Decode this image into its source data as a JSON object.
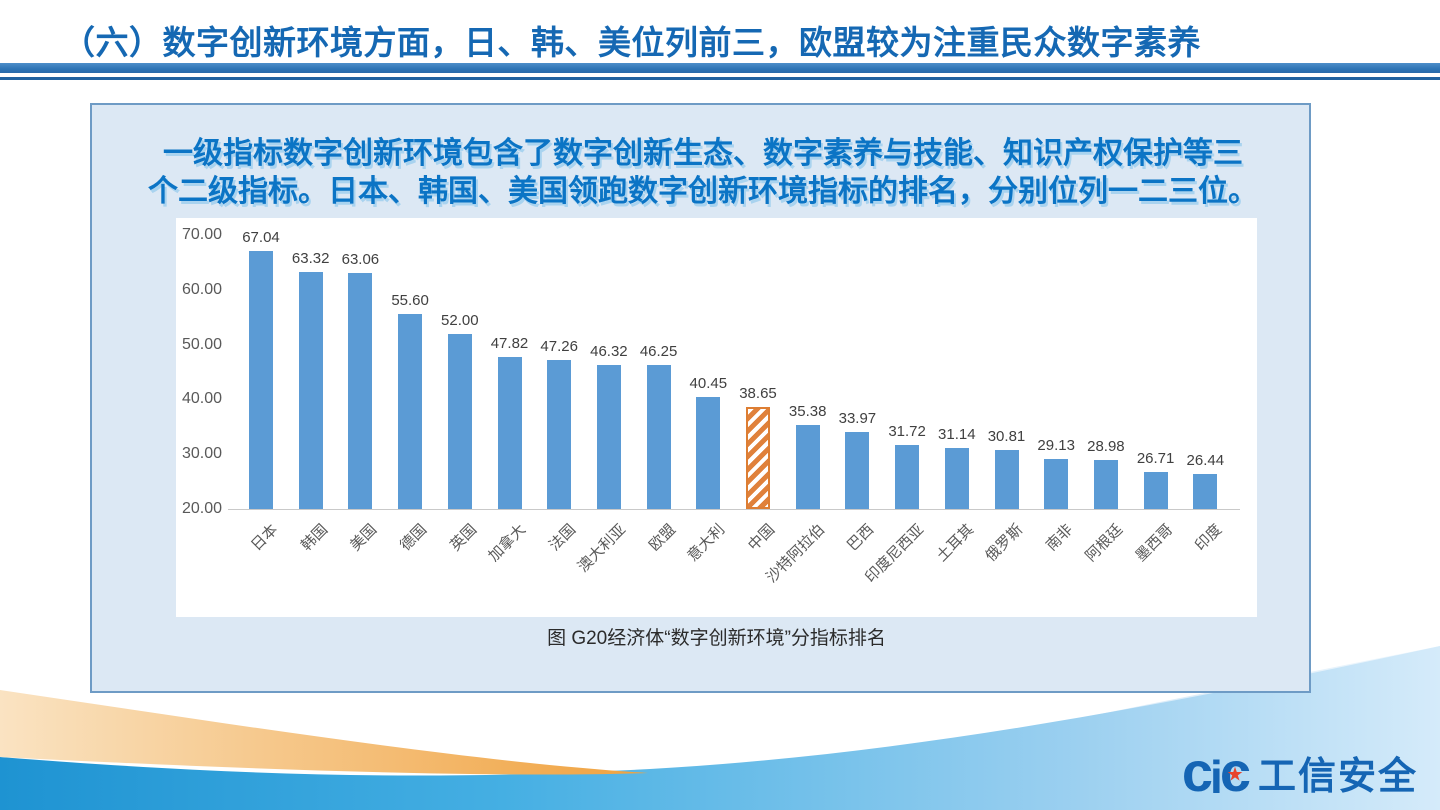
{
  "slide": {
    "title": "（六）数字创新环境方面，日、韩、美位列前三，欧盟较为注重民众数字素养",
    "intro_line1": "一级指标数字创新环境包含了数字创新生态、数字素养与技能、知识产权保护等三",
    "intro_line2": "个二级指标。日本、韩国、美国领跑数字创新环境指标的排名，分别位列一二三位。"
  },
  "chart_data": {
    "type": "bar",
    "title": "图  G20经济体“数字创新环境”分指标排名",
    "categories": [
      "日本",
      "韩国",
      "美国",
      "德国",
      "英国",
      "加拿大",
      "法国",
      "澳大利亚",
      "欧盟",
      "意大利",
      "中国",
      "沙特阿拉伯",
      "巴西",
      "印度尼西亚",
      "土耳其",
      "俄罗斯",
      "南非",
      "阿根廷",
      "墨西哥",
      "印度"
    ],
    "values": [
      67.04,
      63.32,
      63.06,
      55.6,
      52.0,
      47.82,
      47.26,
      46.32,
      46.25,
      40.45,
      38.65,
      35.38,
      33.97,
      31.72,
      31.14,
      30.81,
      29.13,
      28.98,
      26.71,
      26.44
    ],
    "highlight_index": 10,
    "highlight_category": "中国",
    "y_ticks": [
      "70.00",
      "60.00",
      "50.00",
      "40.00",
      "30.00",
      "20.00"
    ],
    "ylim": [
      20,
      70
    ],
    "xlabel": "",
    "ylabel": "",
    "grid": "off",
    "legend": "none",
    "bar_color": "#5B9BD5",
    "highlight_color": "#DD7E33",
    "label_color": "#404040"
  },
  "colors": {
    "title_blue": "#1568B3",
    "intro_blue": "#0B74C5",
    "box_background": "#DCE8F4",
    "box_border": "#6E9BC5",
    "header_rule": "#2E74B5",
    "deco_orange": "#F0A23F",
    "deco_blue": "#1E93D2"
  },
  "logo": {
    "c1": "c",
    "i": "i",
    "c2": "c",
    "star": "★",
    "text": "工信安全"
  }
}
